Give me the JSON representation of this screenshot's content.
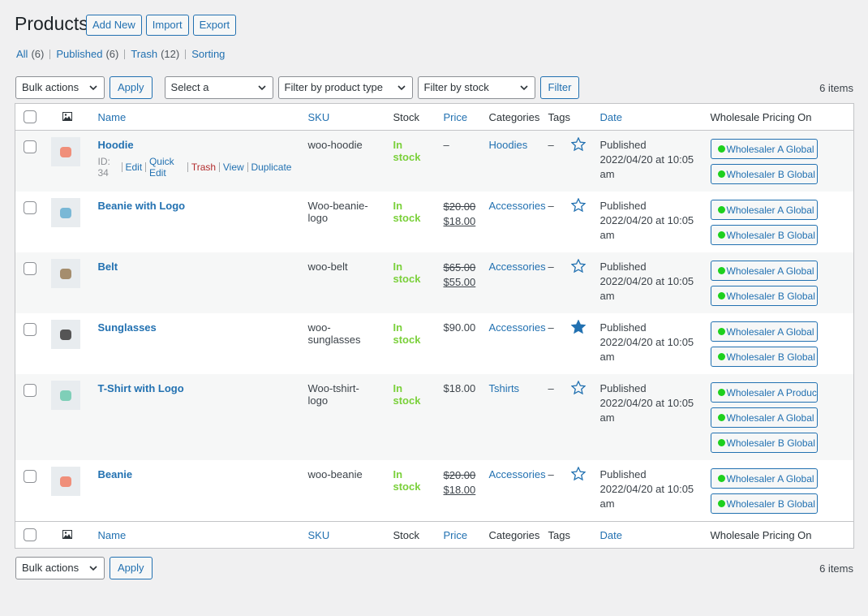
{
  "header": {
    "title": "Products",
    "actions": [
      "Add New",
      "Import",
      "Export"
    ]
  },
  "views": [
    {
      "label": "All",
      "count": "(6)"
    },
    {
      "label": "Published",
      "count": "(6)"
    },
    {
      "label": "Trash",
      "count": "(12)"
    },
    {
      "label": "Sorting"
    }
  ],
  "tablenav": {
    "bulk_actions": "Bulk actions",
    "apply": "Apply",
    "filters": [
      "Select a category",
      "Filter by product type",
      "Filter by stock status"
    ],
    "filter_button": "Filter",
    "items": "6 items"
  },
  "columns": {
    "name": "Name",
    "sku": "SKU",
    "stock": "Stock",
    "price": "Price",
    "categories": "Categories",
    "tags": "Tags",
    "date": "Date",
    "wholesale": "Wholesale Pricing On"
  },
  "rows": [
    {
      "name": "Hoodie",
      "row_actions": {
        "id": "ID: 34",
        "links": [
          "Edit",
          "Quick Edit",
          "Trash",
          "View",
          "Duplicate"
        ]
      },
      "sku": "woo-hoodie",
      "stock": "In stock",
      "price": {
        "price": "–"
      },
      "categories": "Hoodies",
      "tags": "–",
      "featured": false,
      "status": "Published",
      "date": "2022/04/20 at 10:05 am",
      "wholesale": [
        "Wholesaler A Global",
        "Wholesaler B Global"
      ]
    },
    {
      "name": "Beanie with Logo",
      "sku": "Woo-beanie-logo",
      "stock": "In stock",
      "price": {
        "regular": "$20.00",
        "sale": "$18.00"
      },
      "categories": "Accessories",
      "tags": "–",
      "featured": false,
      "status": "Published",
      "date": "2022/04/20 at 10:05 am",
      "wholesale": [
        "Wholesaler A Global",
        "Wholesaler B Global"
      ]
    },
    {
      "name": "Belt",
      "sku": "woo-belt",
      "stock": "In stock",
      "price": {
        "regular": "$65.00",
        "sale": "$55.00"
      },
      "categories": "Accessories",
      "tags": "–",
      "featured": false,
      "status": "Published",
      "date": "2022/04/20 at 10:05 am",
      "wholesale": [
        "Wholesaler A Global",
        "Wholesaler B Global"
      ]
    },
    {
      "name": "Sunglasses",
      "sku": "woo-sunglasses",
      "stock": "In stock",
      "price": {
        "price": "$90.00"
      },
      "categories": "Accessories",
      "tags": "–",
      "featured": true,
      "status": "Published",
      "date": "2022/04/20 at 10:05 am",
      "wholesale": [
        "Wholesaler A Global",
        "Wholesaler B Global"
      ]
    },
    {
      "name": "T-Shirt with Logo",
      "sku": "Woo-tshirt-logo",
      "stock": "In stock",
      "price": {
        "price": "$18.00"
      },
      "categories": "Tshirts",
      "tags": "–",
      "featured": false,
      "status": "Published",
      "date": "2022/04/20 at 10:05 am",
      "wholesale": [
        "Wholesaler A Product",
        "Wholesaler A Global",
        "Wholesaler B Global"
      ]
    },
    {
      "name": "Beanie",
      "sku": "woo-beanie",
      "stock": "In stock",
      "price": {
        "regular": "$20.00",
        "sale": "$18.00"
      },
      "categories": "Accessories",
      "tags": "–",
      "featured": false,
      "status": "Published",
      "date": "2022/04/20 at 10:05 am",
      "wholesale": [
        "Wholesaler A Global",
        "Wholesaler B Global"
      ]
    }
  ]
}
